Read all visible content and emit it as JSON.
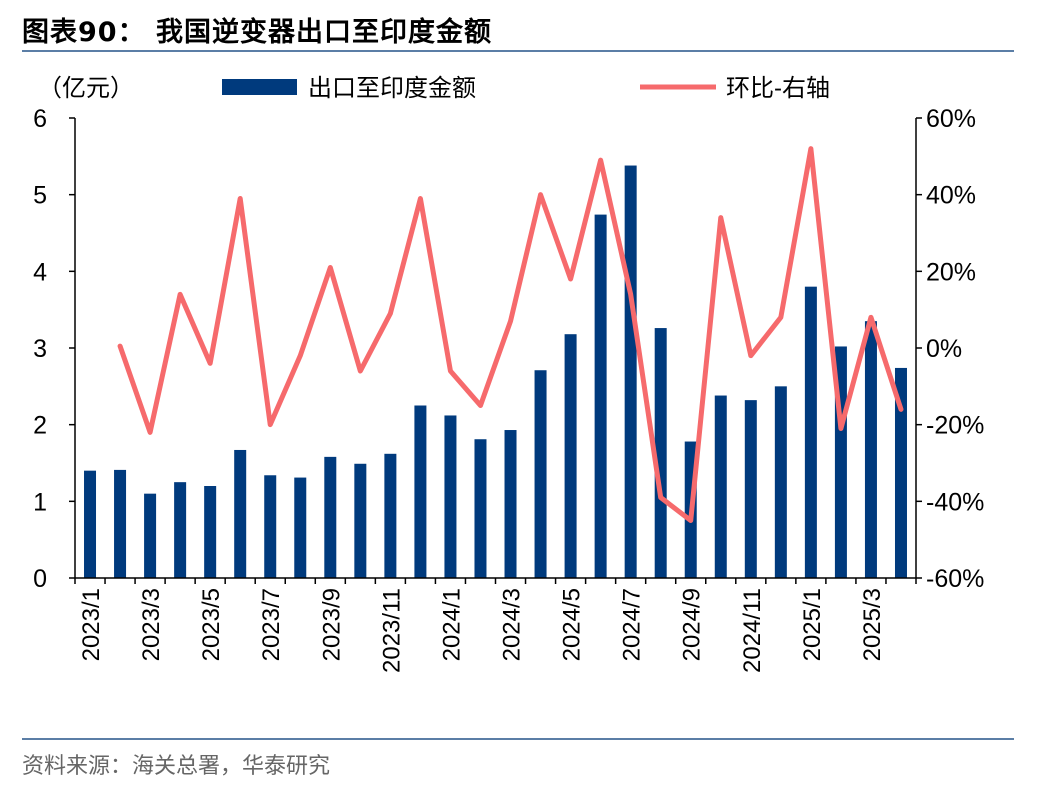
{
  "header": {
    "title": "图表90： 我国逆变器出口至印度金额"
  },
  "footer": {
    "source": "资料来源：海关总署，华泰研究"
  },
  "chart_data": {
    "type": "bar+line",
    "unit_label": "（亿元）",
    "categories": [
      "2023/1",
      "2023/2",
      "2023/3",
      "2023/4",
      "2023/5",
      "2023/6",
      "2023/7",
      "2023/8",
      "2023/9",
      "2023/10",
      "2023/11",
      "2023/12",
      "2024/1",
      "2024/2",
      "2024/3",
      "2024/4",
      "2024/5",
      "2024/6",
      "2024/7",
      "2024/8",
      "2024/9",
      "2024/10",
      "2024/11",
      "2024/12",
      "2025/1",
      "2025/2",
      "2025/3",
      "2025/4"
    ],
    "x_tick_labels": [
      "2023/1",
      "2023/3",
      "2023/5",
      "2023/7",
      "2023/9",
      "2023/11",
      "2024/1",
      "2024/3",
      "2024/5",
      "2024/7",
      "2024/9",
      "2024/11",
      "2025/1",
      "2025/3"
    ],
    "series": [
      {
        "name": "出口至印度金额",
        "type": "bar",
        "axis": "left",
        "color": "#003a7d",
        "values": [
          1.4,
          1.41,
          1.1,
          1.25,
          1.2,
          1.67,
          1.34,
          1.31,
          1.58,
          1.49,
          1.62,
          2.25,
          2.12,
          1.81,
          1.93,
          2.71,
          3.18,
          4.74,
          5.38,
          3.26,
          1.78,
          2.38,
          2.32,
          2.5,
          3.8,
          3.02,
          3.35,
          2.74
        ]
      },
      {
        "name": "环比-右轴",
        "type": "line",
        "axis": "right",
        "color": "#f66a6c",
        "values": [
          null,
          0.5,
          -22,
          14,
          -4,
          39,
          -20,
          -2,
          21,
          -6,
          9,
          39,
          -6,
          -15,
          7,
          40,
          18,
          49,
          14,
          -39,
          -45,
          34,
          -2,
          8,
          52,
          -21,
          8,
          -16
        ]
      }
    ],
    "ylim_left": [
      0,
      6
    ],
    "yticks_left": [
      "0",
      "1",
      "2",
      "3",
      "4",
      "5",
      "6"
    ],
    "ylim_right": [
      -60,
      60
    ],
    "yticks_right": [
      "-60%",
      "-40%",
      "-20%",
      "0%",
      "20%",
      "40%",
      "60%"
    ],
    "legend_position": "top",
    "grid": false
  }
}
